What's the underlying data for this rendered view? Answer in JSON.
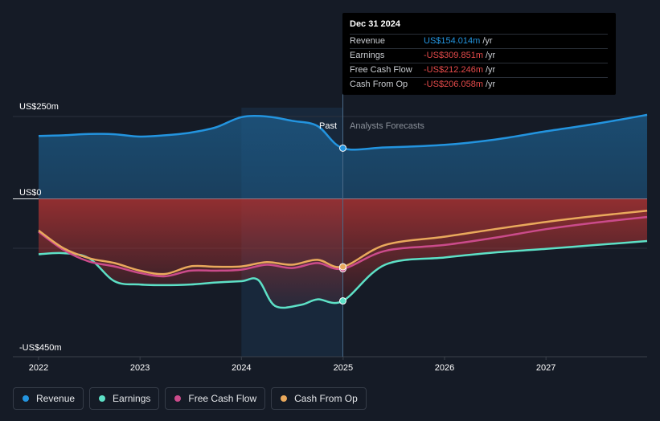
{
  "chart_data": {
    "type": "area",
    "y_ticks": {
      "top": "US$250m",
      "zero": "US$0",
      "bottom": "-US$450m"
    },
    "ylim": [
      -450,
      250
    ],
    "x_ticks": [
      "2022",
      "2023",
      "2024",
      "2025",
      "2026",
      "2027"
    ],
    "divider": {
      "date": "2024-12-31",
      "past_label": "Past",
      "forecast_label": "Analysts Forecasts"
    },
    "series": [
      {
        "name": "Revenue",
        "color": "#2394df",
        "points": [
          [
            "2022-01-01",
            191
          ],
          [
            "2022-04-01",
            193
          ],
          [
            "2022-07-01",
            197
          ],
          [
            "2022-10-01",
            196
          ],
          [
            "2023-01-01",
            189
          ],
          [
            "2023-04-01",
            193
          ],
          [
            "2023-07-01",
            201
          ],
          [
            "2023-10-01",
            217
          ],
          [
            "2024-01-01",
            248
          ],
          [
            "2024-04-01",
            250
          ],
          [
            "2024-07-01",
            237
          ],
          [
            "2024-10-01",
            221
          ],
          [
            "2024-12-31",
            154.014
          ],
          [
            "2025-06-01",
            156
          ],
          [
            "2026-01-01",
            164
          ],
          [
            "2026-07-01",
            180
          ],
          [
            "2027-01-01",
            205
          ],
          [
            "2027-07-01",
            228
          ],
          [
            "2027-12-31",
            255
          ]
        ]
      },
      {
        "name": "Earnings",
        "color": "#5de0c6",
        "points": [
          [
            "2022-01-01",
            -168
          ],
          [
            "2022-04-01",
            -165
          ],
          [
            "2022-07-01",
            -180
          ],
          [
            "2022-10-01",
            -250
          ],
          [
            "2023-01-01",
            -260
          ],
          [
            "2023-04-01",
            -262
          ],
          [
            "2023-07-01",
            -260
          ],
          [
            "2023-10-01",
            -254
          ],
          [
            "2024-01-01",
            -250
          ],
          [
            "2024-03-01",
            -246
          ],
          [
            "2024-05-01",
            -325
          ],
          [
            "2024-08-01",
            -322
          ],
          [
            "2024-10-01",
            -305
          ],
          [
            "2024-12-31",
            -309.851
          ],
          [
            "2025-06-01",
            -200
          ],
          [
            "2026-01-01",
            -178
          ],
          [
            "2026-07-01",
            -163
          ],
          [
            "2027-01-01",
            -152
          ],
          [
            "2027-07-01",
            -140
          ],
          [
            "2027-12-31",
            -128
          ]
        ]
      },
      {
        "name": "Free Cash Flow",
        "color": "#cb4b8b",
        "points": [
          [
            "2022-01-01",
            -100
          ],
          [
            "2022-04-01",
            -155
          ],
          [
            "2022-07-01",
            -190
          ],
          [
            "2022-10-01",
            -205
          ],
          [
            "2023-01-01",
            -225
          ],
          [
            "2023-04-01",
            -235
          ],
          [
            "2023-07-01",
            -218
          ],
          [
            "2023-10-01",
            -218
          ],
          [
            "2024-01-01",
            -215
          ],
          [
            "2024-04-01",
            -200
          ],
          [
            "2024-07-01",
            -210
          ],
          [
            "2024-10-01",
            -195
          ],
          [
            "2024-12-31",
            -212.246
          ],
          [
            "2025-06-01",
            -158
          ],
          [
            "2026-01-01",
            -140
          ],
          [
            "2026-07-01",
            -118
          ],
          [
            "2027-01-01",
            -92
          ],
          [
            "2027-07-01",
            -72
          ],
          [
            "2027-12-31",
            -55
          ]
        ]
      },
      {
        "name": "Cash From Op",
        "color": "#e9a95c",
        "points": [
          [
            "2022-01-01",
            -96
          ],
          [
            "2022-04-01",
            -150
          ],
          [
            "2022-07-01",
            -180
          ],
          [
            "2022-10-01",
            -195
          ],
          [
            "2023-01-01",
            -218
          ],
          [
            "2023-04-01",
            -228
          ],
          [
            "2023-07-01",
            -205
          ],
          [
            "2023-10-01",
            -206
          ],
          [
            "2024-01-01",
            -205
          ],
          [
            "2024-04-01",
            -192
          ],
          [
            "2024-07-01",
            -200
          ],
          [
            "2024-10-01",
            -185
          ],
          [
            "2024-12-31",
            -206.058
          ],
          [
            "2025-06-01",
            -140
          ],
          [
            "2026-01-01",
            -115
          ],
          [
            "2026-07-01",
            -92
          ],
          [
            "2027-01-01",
            -70
          ],
          [
            "2027-07-01",
            -52
          ],
          [
            "2027-12-31",
            -36
          ]
        ]
      }
    ],
    "tooltip": {
      "date": "Dec 31 2024",
      "rows": [
        {
          "label": "Revenue",
          "value": "US$154.014m",
          "unit": "/yr",
          "color": "#2394df"
        },
        {
          "label": "Earnings",
          "value": "-US$309.851m",
          "unit": "/yr",
          "color": "#e64b4b"
        },
        {
          "label": "Free Cash Flow",
          "value": "-US$212.246m",
          "unit": "/yr",
          "color": "#e64b4b"
        },
        {
          "label": "Cash From Op",
          "value": "-US$206.058m",
          "unit": "/yr",
          "color": "#e64b4b"
        }
      ]
    }
  },
  "legend": [
    {
      "label": "Revenue",
      "color": "#2394df"
    },
    {
      "label": "Earnings",
      "color": "#5de0c6"
    },
    {
      "label": "Free Cash Flow",
      "color": "#cb4b8b"
    },
    {
      "label": "Cash From Op",
      "color": "#e9a95c"
    }
  ]
}
